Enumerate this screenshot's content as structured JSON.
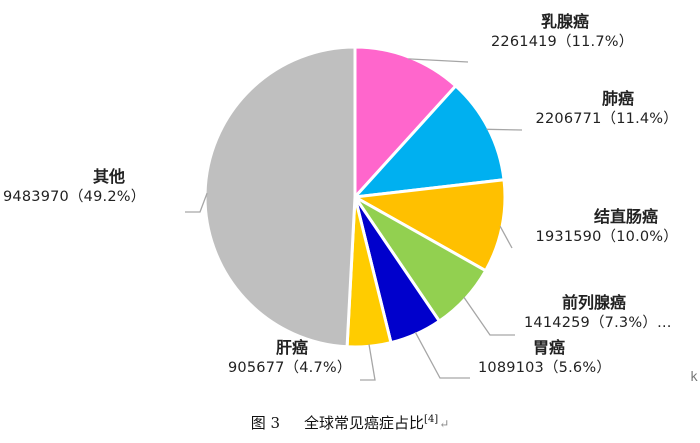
{
  "chart_data": {
    "type": "pie",
    "title": "",
    "slices": [
      {
        "name": "乳腺癌",
        "value": 2261419,
        "percent": "11.7%",
        "value_label": "2261419（11.7%）",
        "color": "#ff66cc"
      },
      {
        "name": "肺癌",
        "value": 2206771,
        "percent": "11.4%",
        "value_label": "2206771（11.4%）",
        "color": "#00b0f0"
      },
      {
        "name": "结直肠癌",
        "value": 1931590,
        "percent": "10.0%",
        "value_label": "1931590（10.0%）",
        "color": "#ffc000"
      },
      {
        "name": "前列腺癌",
        "value": 1414259,
        "percent": "7.3%",
        "value_label": "1414259（7.3%）…",
        "color": "#92d050"
      },
      {
        "name": "胃癌",
        "value": 1089103,
        "percent": "5.6%",
        "value_label": "1089103（5.6%）",
        "color": "#0000cc"
      },
      {
        "name": "肝癌",
        "value": 905677,
        "percent": "4.7%",
        "value_label": "905677（4.7%）",
        "color": "#ffcc00"
      },
      {
        "name": "其他",
        "value": 9483970,
        "percent": "49.2%",
        "value_label": "9483970（49.2%）",
        "color": "#bfbfbf"
      }
    ],
    "start_angle_deg": 0,
    "direction": "clockwise",
    "leader_line_color": "#a6a6a6",
    "slice_border_color": "#ffffff"
  },
  "caption": {
    "figure_no": "图 3",
    "text": "全球常见癌症占比",
    "ref": "[4]",
    "mark": "↵"
  },
  "edge_glyph": "k"
}
